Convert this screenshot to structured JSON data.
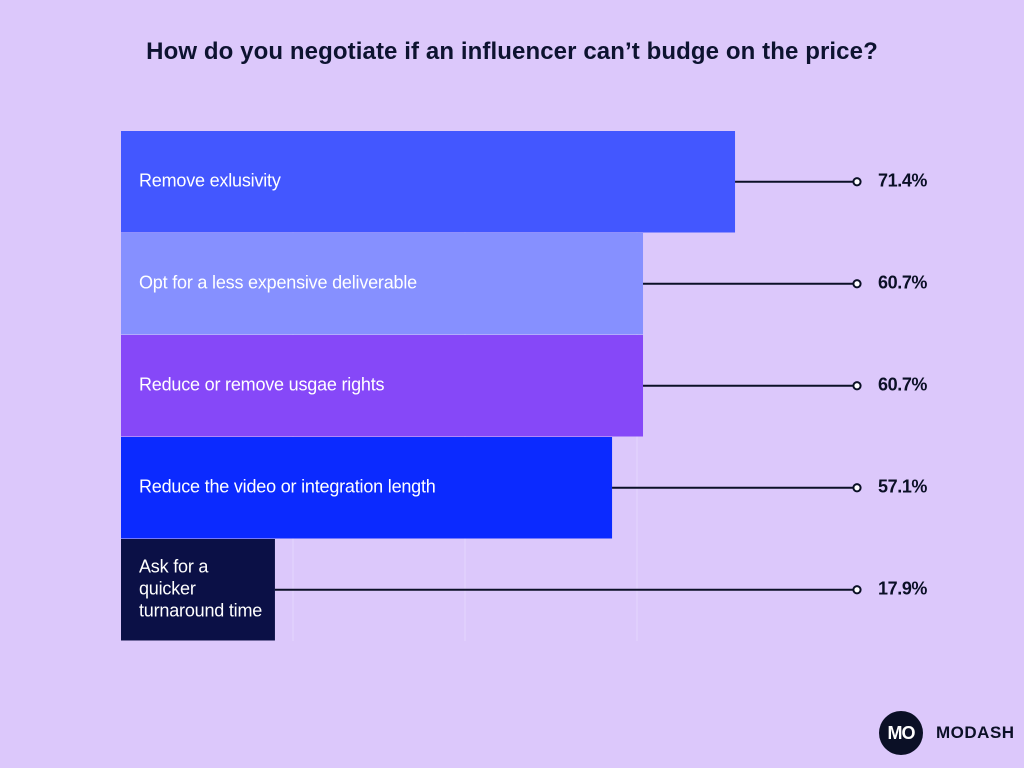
{
  "chart_data": {
    "type": "bar",
    "orientation": "horizontal",
    "title": "How do you negotiate if an influencer can’t budge on the price?",
    "categories": [
      "Remove exlusivity",
      "Opt for a less expensive deliverable",
      "Reduce or remove usgae rights",
      "Reduce the video or integration length",
      "Ask for a quicker turnaround time"
    ],
    "values": [
      71.4,
      60.7,
      60.7,
      57.1,
      17.9
    ],
    "value_labels": [
      "71.4%",
      "60.7%",
      "60.7%",
      "57.1%",
      "17.9%"
    ],
    "bar_colors": [
      "#4357ff",
      "#8690ff",
      "#8648f8",
      "#0b2aff",
      "#0b1046"
    ],
    "xlim": [
      0,
      100
    ],
    "unit": "%",
    "xlabel": "",
    "ylabel": "",
    "legend": "none"
  },
  "brand": {
    "logo_text": "MO",
    "name": "MODASH"
  },
  "colors": {
    "background": "#dcc8fb",
    "leader_line": "#0b1026",
    "text_dark": "#0b1026"
  }
}
